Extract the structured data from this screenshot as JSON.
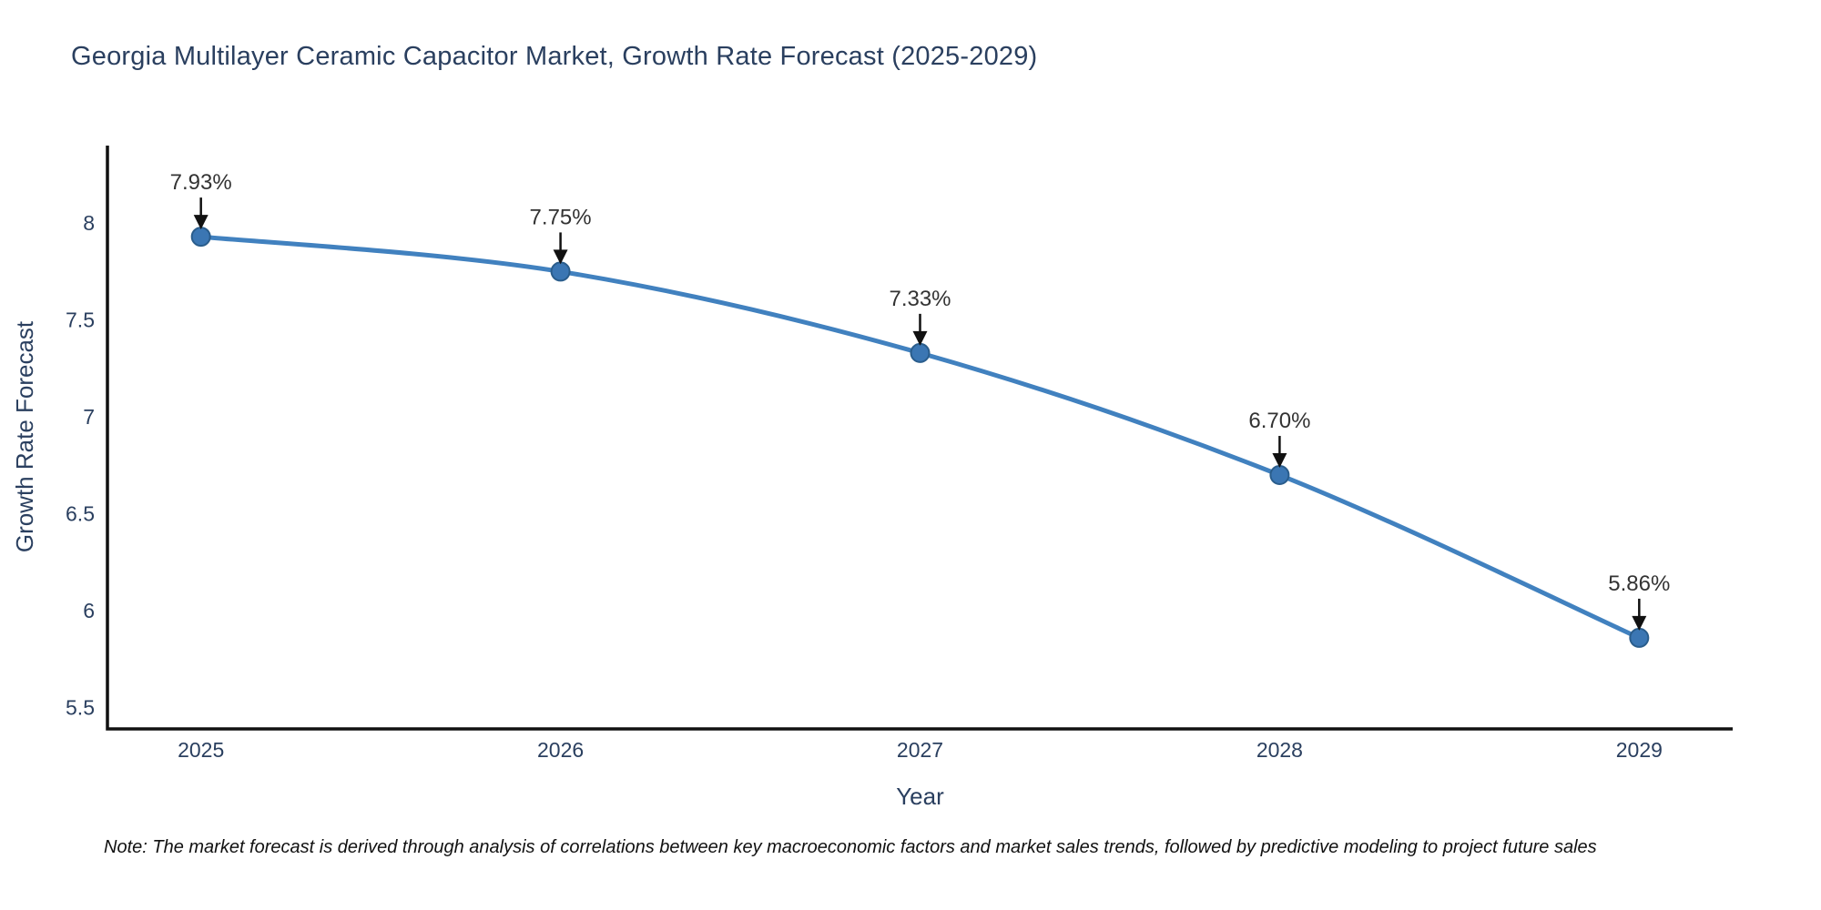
{
  "title": "Georgia Multilayer Ceramic Capacitor Market, Growth Rate Forecast (2025-2029)",
  "note": "Note: The market forecast is derived through analysis of correlations between key macroeconomic factors and market sales trends, followed by predictive modeling to project future sales",
  "chart_data": {
    "type": "line",
    "x": [
      2025,
      2026,
      2027,
      2028,
      2029
    ],
    "series": [
      {
        "name": "Growth Rate Forecast",
        "values": [
          7.93,
          7.75,
          7.33,
          6.7,
          5.86
        ]
      }
    ],
    "point_labels": [
      "7.93%",
      "7.75%",
      "7.33%",
      "6.70%",
      "5.86%"
    ],
    "title": "Georgia Multilayer Ceramic Capacitor Market, Growth Rate Forecast (2025-2029)",
    "xlabel": "Year",
    "ylabel": "Growth Rate Forecast",
    "xlim": [
      2024.74,
      2029.26
    ],
    "ylim": [
      5.39,
      8.4
    ],
    "xticks": [
      2025,
      2026,
      2027,
      2028,
      2029
    ],
    "xtick_labels": [
      "2025",
      "2026",
      "2027",
      "2028",
      "2029"
    ],
    "yticks": [
      5.5,
      6,
      6.5,
      7,
      7.5,
      8
    ],
    "ytick_labels": [
      "5.5",
      "6",
      "6.5",
      "7",
      "7.5",
      "8"
    ],
    "grid": false,
    "legend_position": "none",
    "line_shape": "spline",
    "colors": {
      "line": "#4181bf",
      "marker_fill": "#3b76b3",
      "marker_edge": "#2a5d8c",
      "axis_line": "#111111",
      "tick_text": "#2a3f5f",
      "axis_title_text": "#2a3f5f",
      "title_text": "#2a3f5f",
      "annotation_text": "#333333",
      "arrow": "#111111",
      "background": "#ffffff"
    }
  }
}
